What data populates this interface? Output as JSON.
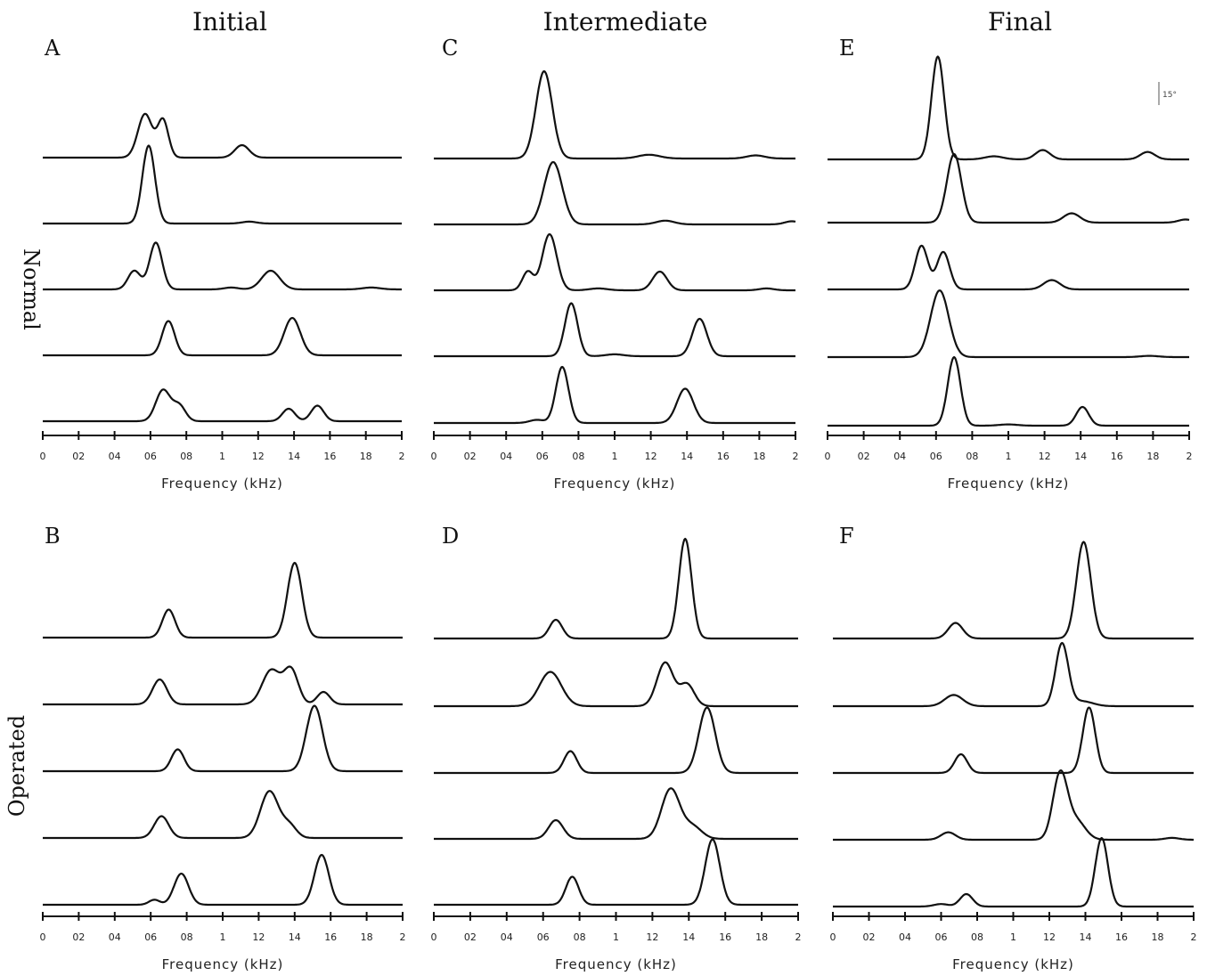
{
  "figure": {
    "column_titles": [
      "Initial",
      "Intermediate",
      "Final"
    ],
    "row_labels": [
      "Normal",
      "Operated"
    ],
    "scale_label": "15°"
  },
  "chart_data": [
    {
      "type": "line",
      "panel": "A",
      "row": "Normal",
      "column": "Initial",
      "xlabel": "Frequency (kHz)",
      "ylabel": "",
      "xlim": [
        0,
        2
      ],
      "xticks": [
        "0",
        "02",
        "04",
        "06",
        "08",
        "1",
        "12",
        "14",
        "16",
        "18",
        "2"
      ],
      "traces": [
        {
          "peaks": [
            [
              0.57,
              0.7,
              0.04
            ],
            [
              0.67,
              0.6,
              0.03
            ],
            [
              1.11,
              0.2,
              0.04
            ]
          ]
        },
        {
          "peaks": [
            [
              0.59,
              1.25,
              0.035
            ],
            [
              1.15,
              0.03,
              0.04
            ]
          ]
        },
        {
          "peaks": [
            [
              0.51,
              0.3,
              0.035
            ],
            [
              0.63,
              0.75,
              0.035
            ],
            [
              1.05,
              0.03,
              0.04
            ],
            [
              1.27,
              0.3,
              0.05
            ],
            [
              1.83,
              0.03,
              0.05
            ]
          ]
        },
        {
          "peaks": [
            [
              0.7,
              0.55,
              0.035
            ],
            [
              1.39,
              0.6,
              0.045
            ]
          ]
        },
        {
          "peaks": [
            [
              0.67,
              0.5,
              0.04
            ],
            [
              0.76,
              0.25,
              0.035
            ],
            [
              1.37,
              0.2,
              0.035
            ],
            [
              1.53,
              0.25,
              0.035
            ]
          ]
        }
      ]
    },
    {
      "type": "line",
      "panel": "C",
      "row": "Normal",
      "column": "Intermediate",
      "xlabel": "Frequency (kHz)",
      "ylabel": "",
      "xlim": [
        0,
        2
      ],
      "xticks": [
        "0",
        "02",
        "04",
        "06",
        "08",
        "1",
        "12",
        "14",
        "16",
        "18",
        "2"
      ],
      "traces": [
        {
          "peaks": [
            [
              0.61,
              1.4,
              0.045
            ],
            [
              1.19,
              0.06,
              0.06
            ],
            [
              1.78,
              0.05,
              0.05
            ]
          ]
        },
        {
          "peaks": [
            [
              0.66,
              1.0,
              0.05
            ],
            [
              1.28,
              0.06,
              0.05
            ],
            [
              1.98,
              0.05,
              0.04
            ]
          ]
        },
        {
          "peaks": [
            [
              0.52,
              0.3,
              0.03
            ],
            [
              0.64,
              0.9,
              0.04
            ],
            [
              0.91,
              0.03,
              0.05
            ],
            [
              1.25,
              0.3,
              0.04
            ],
            [
              1.84,
              0.03,
              0.04
            ]
          ]
        },
        {
          "peaks": [
            [
              0.76,
              0.85,
              0.035
            ],
            [
              1.0,
              0.03,
              0.05
            ],
            [
              1.47,
              0.6,
              0.04
            ]
          ]
        },
        {
          "peaks": [
            [
              0.57,
              0.05,
              0.04
            ],
            [
              0.71,
              0.9,
              0.035
            ],
            [
              1.39,
              0.55,
              0.045
            ]
          ]
        }
      ]
    },
    {
      "type": "line",
      "panel": "E",
      "row": "Normal",
      "column": "Final",
      "xlabel": "Frequency (kHz)",
      "ylabel": "",
      "xlim": [
        0,
        2
      ],
      "xticks": [
        "0",
        "02",
        "04",
        "06",
        "08",
        "1",
        "12",
        "14",
        "16",
        "18",
        "2"
      ],
      "traces": [
        {
          "peaks": [
            [
              0.61,
              1.65,
              0.035
            ],
            [
              0.92,
              0.05,
              0.05
            ],
            [
              1.19,
              0.15,
              0.04
            ],
            [
              1.77,
              0.12,
              0.04
            ]
          ]
        },
        {
          "peaks": [
            [
              0.7,
              1.1,
              0.04
            ],
            [
              1.35,
              0.15,
              0.045
            ],
            [
              1.98,
              0.05,
              0.04
            ]
          ]
        },
        {
          "peaks": [
            [
              0.52,
              0.7,
              0.035
            ],
            [
              0.64,
              0.6,
              0.035
            ],
            [
              1.24,
              0.15,
              0.045
            ]
          ]
        },
        {
          "peaks": [
            [
              0.62,
              1.07,
              0.05
            ],
            [
              1.78,
              0.02,
              0.05
            ]
          ]
        },
        {
          "peaks": [
            [
              0.7,
              1.1,
              0.035
            ],
            [
              1.0,
              0.02,
              0.05
            ],
            [
              1.41,
              0.3,
              0.035
            ]
          ]
        }
      ]
    },
    {
      "type": "line",
      "panel": "B",
      "row": "Operated",
      "column": "Initial",
      "xlabel": "Frequency (kHz)",
      "ylabel": "",
      "xlim": [
        0,
        2
      ],
      "xticks": [
        "0",
        "02",
        "04",
        "06",
        "08",
        "1",
        "12",
        "14",
        "16",
        "18",
        "2"
      ],
      "traces": [
        {
          "peaks": [
            [
              0.7,
              0.45,
              0.035
            ],
            [
              1.4,
              1.2,
              0.04
            ]
          ]
        },
        {
          "peaks": [
            [
              0.65,
              0.4,
              0.04
            ],
            [
              1.27,
              0.55,
              0.05
            ],
            [
              1.38,
              0.55,
              0.04
            ],
            [
              1.56,
              0.2,
              0.035
            ]
          ]
        },
        {
          "peaks": [
            [
              0.75,
              0.35,
              0.035
            ],
            [
              1.51,
              1.05,
              0.045
            ]
          ]
        },
        {
          "peaks": [
            [
              0.66,
              0.35,
              0.04
            ],
            [
              1.26,
              0.75,
              0.05
            ],
            [
              1.37,
              0.2,
              0.04
            ]
          ]
        },
        {
          "peaks": [
            [
              0.62,
              0.08,
              0.03
            ],
            [
              0.77,
              0.5,
              0.04
            ],
            [
              1.55,
              0.8,
              0.04
            ]
          ]
        }
      ]
    },
    {
      "type": "line",
      "panel": "D",
      "row": "Operated",
      "column": "Intermediate",
      "xlabel": "Frequency (kHz)",
      "ylabel": "",
      "xlim": [
        0,
        2
      ],
      "xticks": [
        "0",
        "02",
        "04",
        "06",
        "08",
        "1",
        "12",
        "14",
        "16",
        "18",
        "2"
      ],
      "traces": [
        {
          "peaks": [
            [
              0.67,
              0.3,
              0.035
            ],
            [
              1.38,
              1.6,
              0.035
            ]
          ]
        },
        {
          "peaks": [
            [
              0.64,
              0.55,
              0.06
            ],
            [
              1.27,
              0.7,
              0.045
            ],
            [
              1.39,
              0.35,
              0.04
            ]
          ]
        },
        {
          "peaks": [
            [
              0.75,
              0.35,
              0.035
            ],
            [
              1.5,
              1.05,
              0.045
            ]
          ]
        },
        {
          "peaks": [
            [
              0.67,
              0.3,
              0.04
            ],
            [
              1.3,
              0.8,
              0.05
            ],
            [
              1.42,
              0.2,
              0.05
            ]
          ]
        },
        {
          "peaks": [
            [
              0.76,
              0.45,
              0.035
            ],
            [
              1.53,
              1.05,
              0.04
            ]
          ]
        }
      ]
    },
    {
      "type": "line",
      "panel": "F",
      "row": "Operated",
      "column": "Final",
      "xlabel": "Frequency (kHz)",
      "ylabel": "",
      "xlim": [
        0,
        2
      ],
      "xticks": [
        "0",
        "02",
        "04",
        "06",
        "08",
        "1",
        "12",
        "14",
        "16",
        "18",
        "2"
      ],
      "traces": [
        {
          "peaks": [
            [
              0.68,
              0.25,
              0.04
            ],
            [
              1.39,
              1.55,
              0.04
            ]
          ]
        },
        {
          "peaks": [
            [
              0.67,
              0.18,
              0.05
            ],
            [
              1.27,
              1.0,
              0.035
            ],
            [
              1.38,
              0.08,
              0.06
            ]
          ]
        },
        {
          "peaks": [
            [
              0.71,
              0.3,
              0.035
            ],
            [
              1.42,
              1.05,
              0.035
            ]
          ]
        },
        {
          "peaks": [
            [
              0.64,
              0.12,
              0.04
            ],
            [
              1.26,
              1.05,
              0.04
            ],
            [
              1.35,
              0.3,
              0.05
            ],
            [
              1.88,
              0.03,
              0.04
            ]
          ]
        },
        {
          "peaks": [
            [
              0.6,
              0.04,
              0.04
            ],
            [
              0.74,
              0.2,
              0.035
            ],
            [
              1.49,
              1.1,
              0.035
            ]
          ]
        }
      ]
    }
  ]
}
